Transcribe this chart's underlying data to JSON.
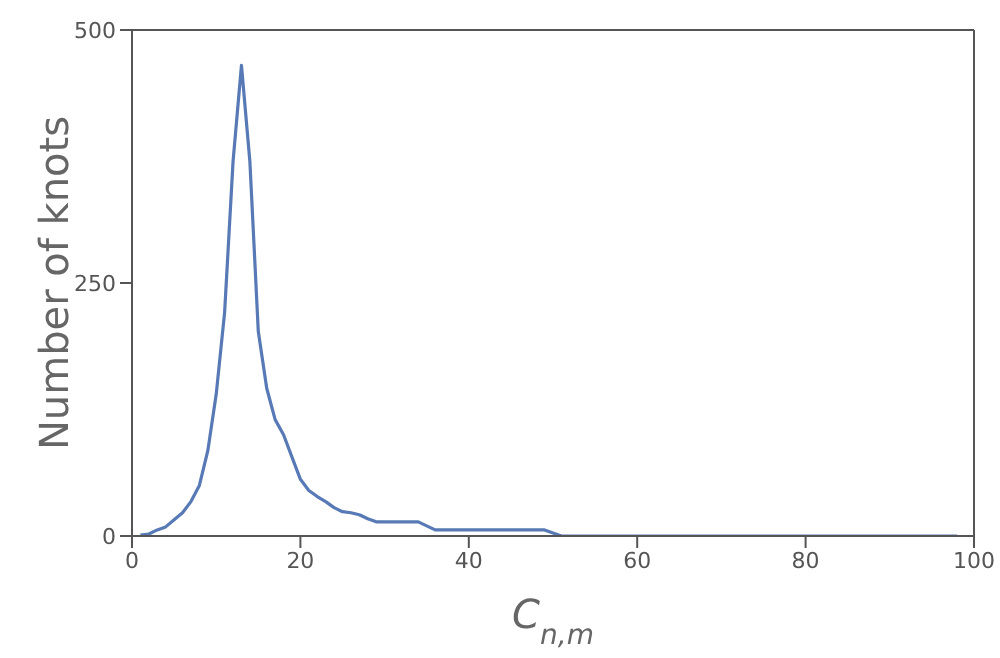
{
  "chart_data": {
    "type": "line",
    "xlabel": "C$_{n,m}$",
    "ylabel": "Number of knots",
    "x": [
      1,
      2,
      3,
      4,
      5,
      6,
      7,
      8,
      9,
      10,
      11,
      12,
      13,
      14,
      15,
      16,
      17,
      18,
      19,
      20,
      21,
      22,
      23,
      24,
      25,
      26,
      27,
      28,
      29,
      34,
      35,
      36,
      49,
      51,
      98
    ],
    "series": [
      {
        "color": "#5779b5",
        "values": [
          1,
          2,
          6,
          9,
          16,
          23,
          34,
          50,
          84,
          140,
          221,
          370,
          465,
          370,
          202,
          146,
          115,
          100,
          78,
          56,
          45,
          39,
          34,
          28,
          24,
          23,
          21,
          17,
          14,
          14,
          10,
          6,
          6,
          0,
          0
        ]
      }
    ],
    "xlim": [
      0,
      100
    ],
    "xticks": [
      0,
      20,
      40,
      60,
      80,
      100
    ],
    "ylim": [
      0,
      500
    ],
    "yticks": [
      0,
      250,
      500
    ],
    "grid": false,
    "legend": false,
    "marker": "none",
    "line_style": "solid"
  }
}
